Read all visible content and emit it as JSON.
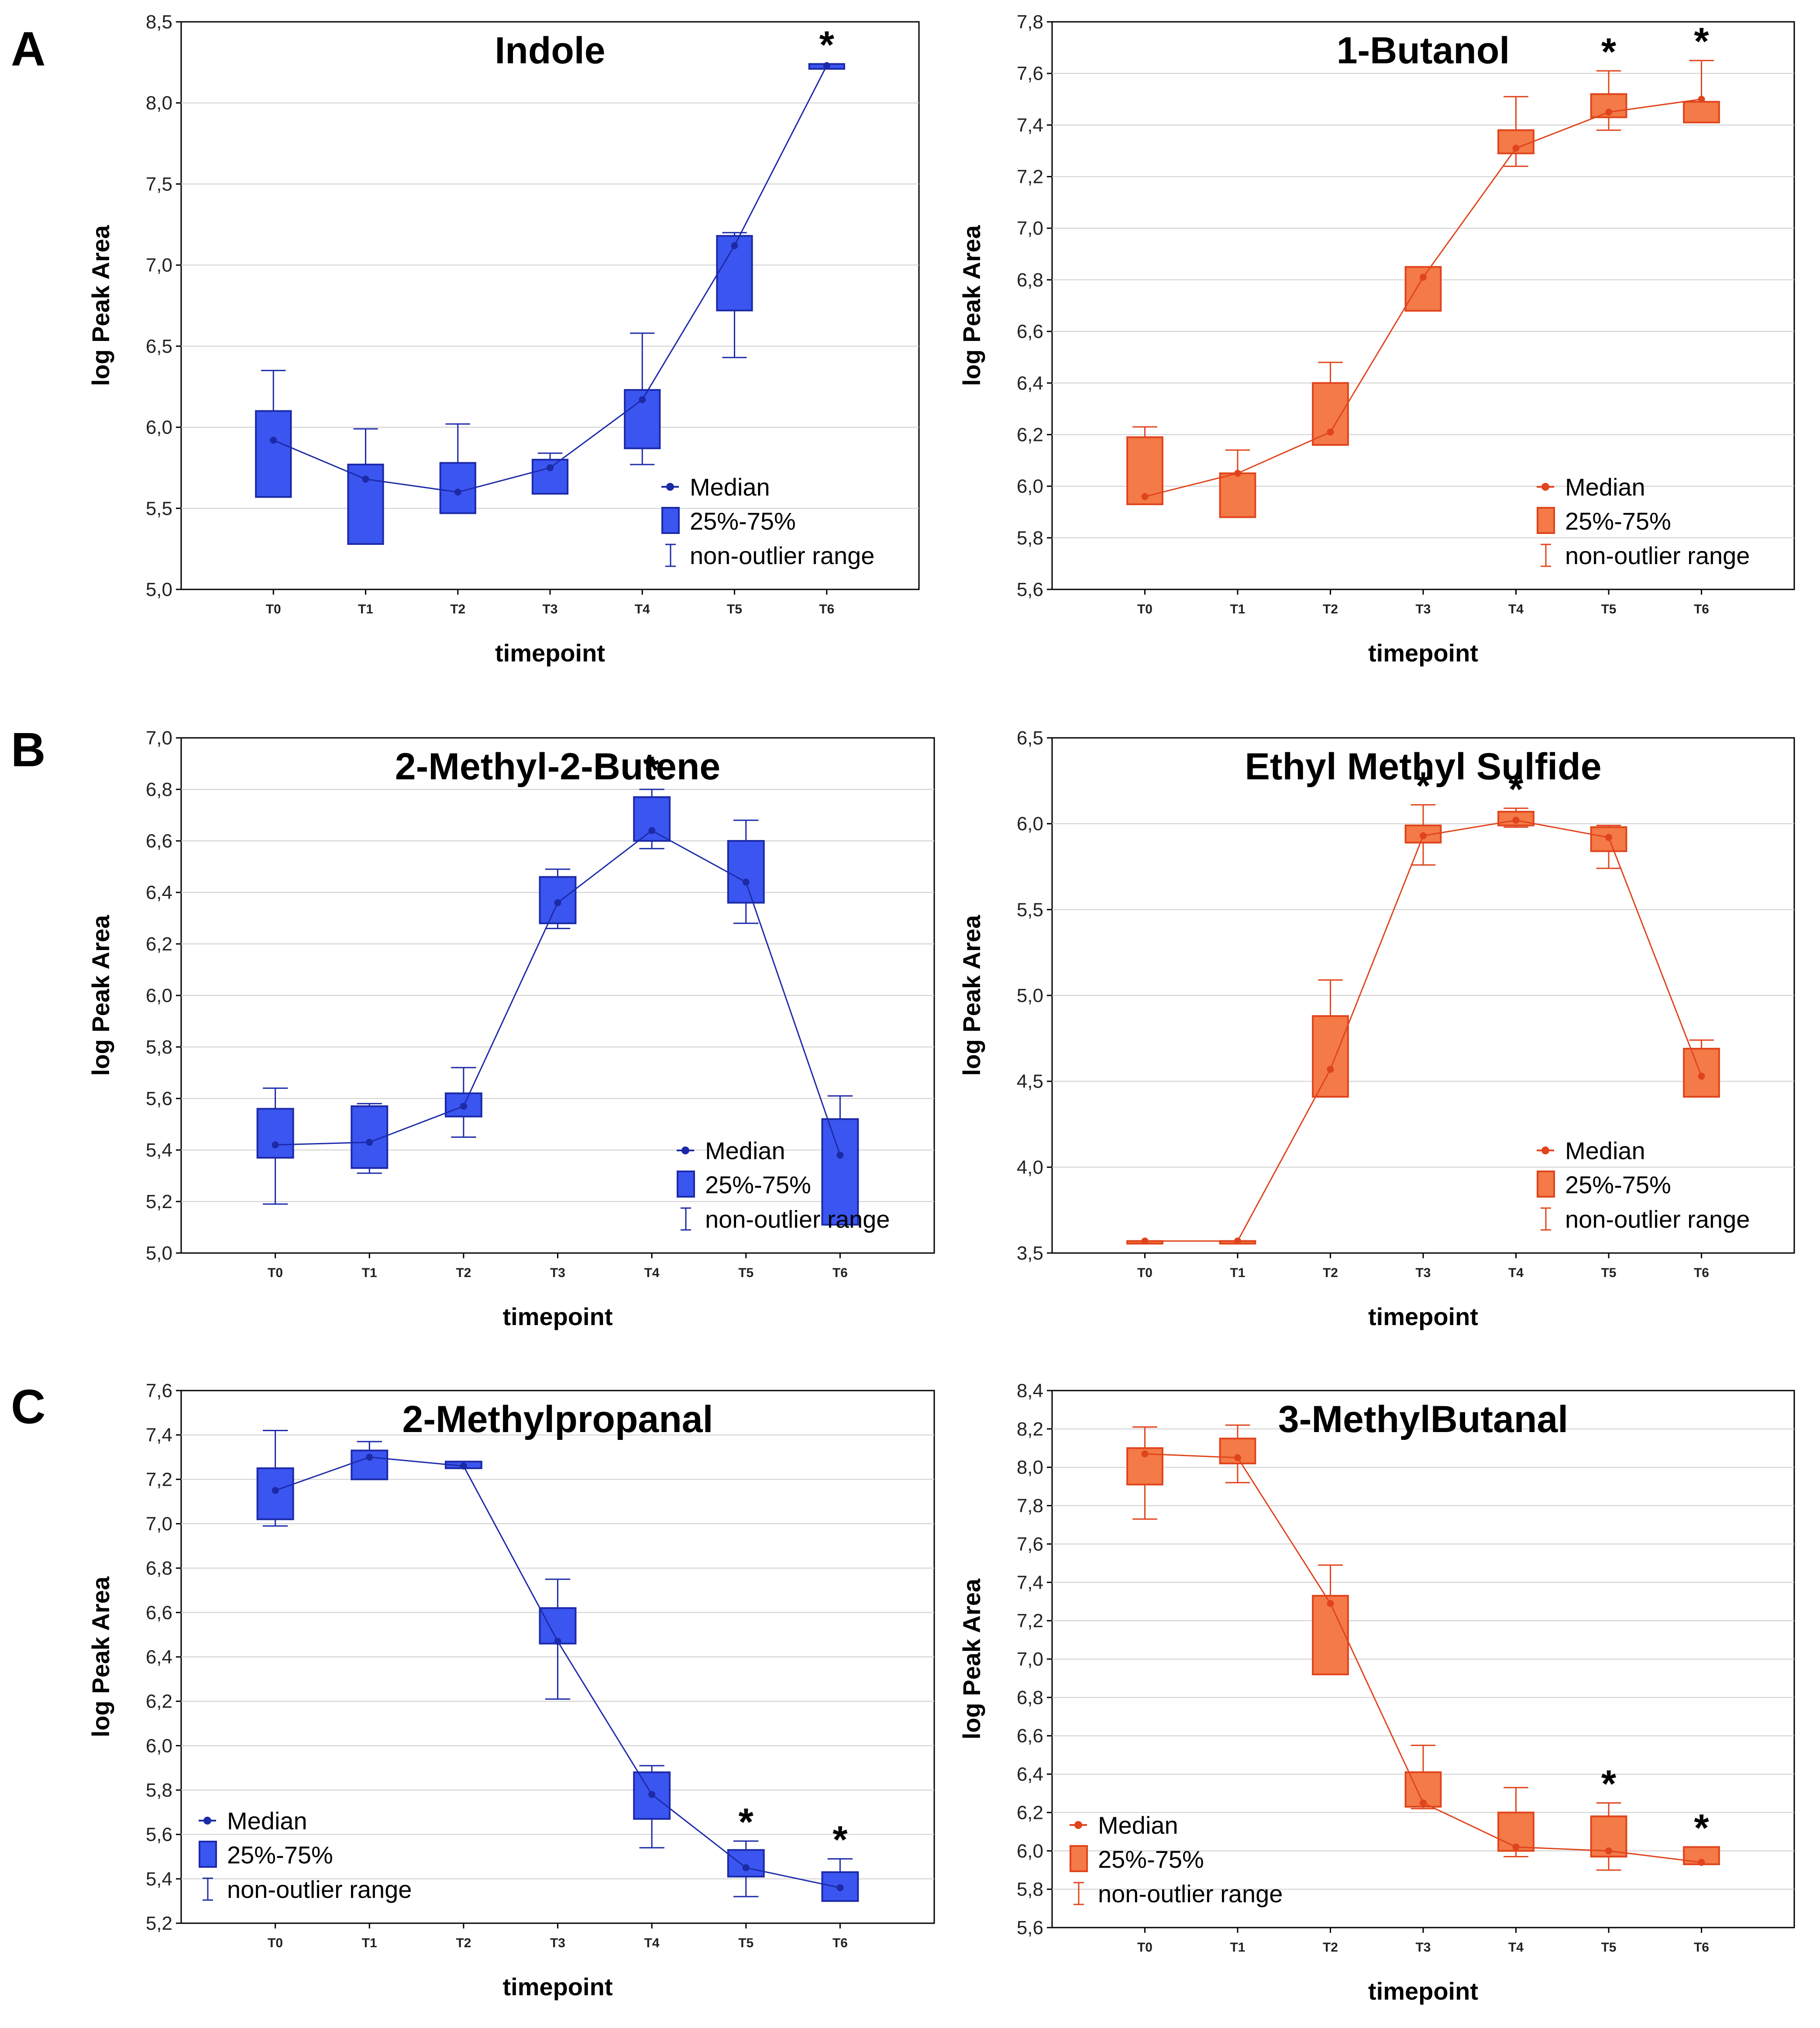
{
  "panel_labels": [
    "A",
    "B",
    "C"
  ],
  "colors": {
    "blue_fill": "#3b55f0",
    "blue_edge": "#1c2aa8",
    "orange_fill": "#f47a47",
    "orange_edge": "#e0441c",
    "grid": "#cfcfcf"
  },
  "chart_data": [
    {
      "id": "indole",
      "type": "box",
      "color": "blue",
      "title": "Indole",
      "xlabel": "timepoint",
      "ylabel": "log Peak Area",
      "categories": [
        "T0",
        "T1",
        "T2",
        "T3",
        "T4",
        "T5",
        "T6"
      ],
      "ylim": [
        5.0,
        8.5
      ],
      "yticks": [
        "5,0",
        "5,5",
        "6,0",
        "6,5",
        "7,0",
        "7,5",
        "8,0",
        "8,5"
      ],
      "median": [
        5.92,
        5.68,
        5.6,
        5.75,
        6.17,
        7.12,
        8.23
      ],
      "q1": [
        5.57,
        5.28,
        5.47,
        5.59,
        5.87,
        6.72,
        8.21
      ],
      "q3": [
        6.1,
        5.77,
        5.78,
        5.8,
        6.23,
        7.18,
        8.24
      ],
      "whisker_low": [
        5.57,
        5.28,
        5.47,
        5.59,
        5.77,
        6.43,
        8.21
      ],
      "whisker_high": [
        6.35,
        5.99,
        6.02,
        5.84,
        6.58,
        7.2,
        8.24
      ],
      "significant": [
        "T6"
      ],
      "significance_mark": "*",
      "legend": {
        "median": "Median",
        "box": "25%-75%",
        "whisker": "non-outlier range"
      }
    },
    {
      "id": "butanol",
      "type": "box",
      "color": "orange",
      "title": "1-Butanol",
      "xlabel": "timepoint",
      "ylabel": "log Peak Area",
      "categories": [
        "T0",
        "T1",
        "T2",
        "T3",
        "T4",
        "T5",
        "T6"
      ],
      "ylim": [
        5.6,
        7.8
      ],
      "yticks": [
        "5,6",
        "5,8",
        "6,0",
        "6,2",
        "6,4",
        "6,6",
        "6,8",
        "7,0",
        "7,2",
        "7,4",
        "7,6",
        "7,8"
      ],
      "median": [
        5.96,
        6.05,
        6.21,
        6.81,
        7.31,
        7.45,
        7.5
      ],
      "q1": [
        5.93,
        5.88,
        6.16,
        6.68,
        7.29,
        7.43,
        7.41
      ],
      "q3": [
        6.19,
        6.05,
        6.4,
        6.85,
        7.38,
        7.52,
        7.49
      ],
      "whisker_low": [
        5.93,
        5.88,
        6.16,
        6.68,
        7.24,
        7.38,
        7.41
      ],
      "whisker_high": [
        6.23,
        6.14,
        6.48,
        6.85,
        7.51,
        7.61,
        7.65
      ],
      "significant": [
        "T5",
        "T6"
      ],
      "significance_mark": "*",
      "legend": {
        "median": "Median",
        "box": "25%-75%",
        "whisker": "non-outlier range"
      }
    },
    {
      "id": "methylbutene",
      "type": "box",
      "color": "blue",
      "title": "2-Methyl-2-Butene",
      "xlabel": "timepoint",
      "ylabel": "log Peak Area",
      "categories": [
        "T0",
        "T1",
        "T2",
        "T3",
        "T4",
        "T5",
        "T6"
      ],
      "ylim": [
        5.0,
        7.0
      ],
      "yticks": [
        "5,0",
        "5,2",
        "5,4",
        "5,6",
        "5,8",
        "6,0",
        "6,2",
        "6,4",
        "6,6",
        "6,8",
        "7,0"
      ],
      "median": [
        5.42,
        5.43,
        5.57,
        6.36,
        6.64,
        6.44,
        5.38
      ],
      "q1": [
        5.37,
        5.33,
        5.53,
        6.28,
        6.6,
        6.36,
        5.11
      ],
      "q3": [
        5.56,
        5.57,
        5.62,
        6.46,
        6.77,
        6.6,
        5.52
      ],
      "whisker_low": [
        5.19,
        5.31,
        5.45,
        6.26,
        6.57,
        6.28,
        5.11
      ],
      "whisker_high": [
        5.64,
        5.58,
        5.72,
        6.49,
        6.8,
        6.68,
        5.61
      ],
      "significant": [
        "T4"
      ],
      "significance_mark": "*",
      "legend": {
        "median": "Median",
        "box": "25%-75%",
        "whisker": "non-outlier range"
      }
    },
    {
      "id": "ethylmethylsulfide",
      "type": "box",
      "color": "orange",
      "title": "Ethyl Methyl Sulfide",
      "xlabel": "timepoint",
      "ylabel": "log Peak Area",
      "categories": [
        "T0",
        "T1",
        "T2",
        "T3",
        "T4",
        "T5",
        "T6"
      ],
      "ylim": [
        3.5,
        6.5
      ],
      "yticks": [
        "3,5",
        "4,0",
        "4,5",
        "5,0",
        "5,5",
        "6,0",
        "6,5"
      ],
      "median": [
        3.57,
        3.57,
        4.57,
        5.93,
        6.02,
        5.92,
        4.53
      ],
      "q1": [
        3.57,
        3.57,
        4.41,
        5.89,
        5.99,
        5.84,
        4.41
      ],
      "q3": [
        3.57,
        3.57,
        4.88,
        5.99,
        6.07,
        5.98,
        4.69
      ],
      "whisker_low": [
        3.57,
        3.57,
        4.41,
        5.76,
        5.98,
        5.74,
        4.41
      ],
      "whisker_high": [
        3.57,
        3.57,
        5.09,
        6.11,
        6.09,
        5.99,
        4.74
      ],
      "significant": [
        "T3",
        "T4"
      ],
      "significance_mark": "*",
      "legend": {
        "median": "Median",
        "box": "25%-75%",
        "whisker": "non-outlier range"
      }
    },
    {
      "id": "methylpropanal",
      "type": "box",
      "color": "blue",
      "title": "2-Methylpropanal",
      "xlabel": "timepoint",
      "ylabel": "log Peak Area",
      "categories": [
        "T0",
        "T1",
        "T2",
        "T3",
        "T4",
        "T5",
        "T6"
      ],
      "ylim": [
        5.2,
        7.6
      ],
      "yticks": [
        "5,2",
        "5,4",
        "5,6",
        "5,8",
        "6,0",
        "6,2",
        "6,4",
        "6,6",
        "6,8",
        "7,0",
        "7,2",
        "7,4",
        "7,6"
      ],
      "median": [
        7.15,
        7.3,
        7.26,
        6.47,
        5.78,
        5.45,
        5.36
      ],
      "q1": [
        7.02,
        7.2,
        7.25,
        6.46,
        5.67,
        5.41,
        5.3
      ],
      "q3": [
        7.25,
        7.33,
        7.28,
        6.62,
        5.88,
        5.53,
        5.43
      ],
      "whisker_low": [
        6.99,
        7.2,
        7.25,
        6.21,
        5.54,
        5.32,
        5.3
      ],
      "whisker_high": [
        7.42,
        7.37,
        7.28,
        6.75,
        5.91,
        5.57,
        5.49
      ],
      "significant": [
        "T5",
        "T6"
      ],
      "significance_mark": "*",
      "legend": {
        "median": "Median",
        "box": "25%-75%",
        "whisker": "non-outlier range"
      }
    },
    {
      "id": "methylbutanal",
      "type": "box",
      "color": "orange",
      "title": "3-MethylButanal",
      "xlabel": "timepoint",
      "ylabel": "log Peak Area",
      "categories": [
        "T0",
        "T1",
        "T2",
        "T3",
        "T4",
        "T5",
        "T6"
      ],
      "ylim": [
        5.6,
        8.4
      ],
      "yticks": [
        "5,6",
        "5,8",
        "6,0",
        "6,2",
        "6,4",
        "6,6",
        "6,8",
        "7,0",
        "7,2",
        "7,4",
        "7,6",
        "7,8",
        "8,0",
        "8,2",
        "8,4"
      ],
      "median": [
        8.07,
        8.05,
        7.29,
        6.25,
        6.02,
        6.0,
        5.94
      ],
      "q1": [
        7.91,
        8.02,
        6.92,
        6.23,
        6.0,
        5.97,
        5.93
      ],
      "q3": [
        8.1,
        8.15,
        7.33,
        6.41,
        6.2,
        6.18,
        6.02
      ],
      "whisker_low": [
        7.73,
        7.92,
        6.92,
        6.22,
        5.97,
        5.9,
        5.93
      ],
      "whisker_high": [
        8.21,
        8.22,
        7.49,
        6.55,
        6.33,
        6.25,
        6.02
      ],
      "significant": [
        "T5",
        "T6"
      ],
      "significance_mark": "*",
      "legend": {
        "median": "Median",
        "box": "25%-75%",
        "whisker": "non-outlier range"
      }
    }
  ]
}
